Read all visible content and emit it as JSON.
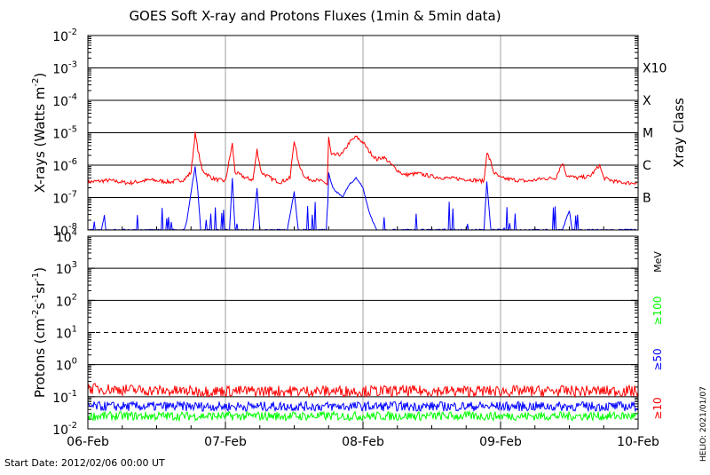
{
  "title": "GOES Soft X-ray and Protons Fluxes   (1min & 5min data)",
  "start_date": "Start Date: 2012/02/06 00:00 UT",
  "credit": "HELIO: 2021/01/07",
  "colors": {
    "xray_long": "#ff0000",
    "xray_short": "#0000ff",
    "proton_10": "#ff0000",
    "proton_50": "#0000ff",
    "proton_100": "#00ff00",
    "grid": "#000000",
    "day_lines": "#a0a0a0"
  },
  "chart_data": [
    {
      "type": "line",
      "title": "",
      "ylabel": "X-rays (Watts m^-2)",
      "yscale": "log",
      "ylim": [
        1e-08,
        0.01
      ],
      "xlim": [
        "2012-02-06 00:00",
        "2012-02-10 00:00"
      ],
      "x_tick_labels": [
        "06-Feb",
        "07-Feb",
        "08-Feb",
        "09-Feb",
        "10-Feb"
      ],
      "y_tick_labels": [
        {
          "base": "10",
          "exp": "-8"
        },
        {
          "base": "10",
          "exp": "-7"
        },
        {
          "base": "10",
          "exp": "-6"
        },
        {
          "base": "10",
          "exp": "-5"
        },
        {
          "base": "10",
          "exp": "-4"
        },
        {
          "base": "10",
          "exp": "-3"
        },
        {
          "base": "10",
          "exp": "-2"
        }
      ],
      "right_axis_title": "Xray Class",
      "right_labels": [
        {
          "label": "B",
          "value": 1e-07
        },
        {
          "label": "C",
          "value": 1e-06
        },
        {
          "label": "M",
          "value": 1e-05
        },
        {
          "label": "X",
          "value": 0.0001
        },
        {
          "label": "X10",
          "value": 0.001
        }
      ],
      "series": [
        {
          "key": "long",
          "points": [
            [
              0.0,
              3e-07
            ],
            [
              0.15,
              3.4e-07
            ],
            [
              0.3,
              2.8e-07
            ],
            [
              0.45,
              3.5e-07
            ],
            [
              0.6,
              3e-07
            ],
            [
              0.7,
              3.6e-07
            ],
            [
              0.75,
              6e-07
            ],
            [
              0.78,
              9.5e-06
            ],
            [
              0.8,
              3e-06
            ],
            [
              0.83,
              7e-07
            ],
            [
              0.9,
              4e-07
            ],
            [
              0.95,
              3.5e-07
            ],
            [
              1.0,
              3.2e-07
            ],
            [
              1.05,
              4.5e-06
            ],
            [
              1.07,
              6e-07
            ],
            [
              1.15,
              4e-07
            ],
            [
              1.2,
              3.5e-07
            ],
            [
              1.23,
              3e-06
            ],
            [
              1.26,
              6e-07
            ],
            [
              1.35,
              3.5e-07
            ],
            [
              1.4,
              3e-07
            ],
            [
              1.47,
              4e-07
            ],
            [
              1.5,
              6e-06
            ],
            [
              1.53,
              1.2e-06
            ],
            [
              1.58,
              4e-07
            ],
            [
              1.65,
              3.5e-07
            ],
            [
              1.72,
              3e-07
            ],
            [
              1.74,
              2.5e-07
            ],
            [
              1.75,
              7e-06
            ],
            [
              1.77,
              2e-06
            ],
            [
              1.85,
              2.2e-06
            ],
            [
              1.9,
              5e-06
            ],
            [
              1.95,
              7.5e-06
            ],
            [
              2.0,
              5e-06
            ],
            [
              2.05,
              2.5e-06
            ],
            [
              2.1,
              1.5e-06
            ],
            [
              2.15,
              1.8e-06
            ],
            [
              2.2,
              1.1e-06
            ],
            [
              2.25,
              7e-07
            ],
            [
              2.3,
              5e-07
            ],
            [
              2.4,
              5.5e-07
            ],
            [
              2.5,
              4.5e-07
            ],
            [
              2.6,
              4e-07
            ],
            [
              2.7,
              3.8e-07
            ],
            [
              2.8,
              3.5e-07
            ],
            [
              2.88,
              3.2e-07
            ],
            [
              2.9,
              2.5e-06
            ],
            [
              2.93,
              1.2e-06
            ],
            [
              2.95,
              6e-07
            ],
            [
              3.0,
              4e-07
            ],
            [
              3.1,
              3.5e-07
            ],
            [
              3.2,
              3.2e-07
            ],
            [
              3.3,
              3.8e-07
            ],
            [
              3.4,
              4e-07
            ],
            [
              3.45,
              1.2e-06
            ],
            [
              3.48,
              5e-07
            ],
            [
              3.55,
              4e-07
            ],
            [
              3.65,
              4.5e-07
            ],
            [
              3.72,
              1e-06
            ],
            [
              3.75,
              4e-07
            ],
            [
              3.85,
              3e-07
            ],
            [
              3.95,
              2.8e-07
            ],
            [
              4.0,
              3e-07
            ]
          ]
        },
        {
          "key": "short",
          "points": [
            [
              0.0,
              1e-08
            ],
            [
              0.1,
              1e-08
            ],
            [
              0.12,
              3e-08
            ],
            [
              0.13,
              1e-08
            ],
            [
              0.3,
              1e-08
            ],
            [
              0.7,
              1e-08
            ],
            [
              0.72,
              2e-08
            ],
            [
              0.75,
              1.5e-07
            ],
            [
              0.78,
              9e-07
            ],
            [
              0.8,
              1.5e-07
            ],
            [
              0.82,
              1e-08
            ],
            [
              1.0,
              1e-08
            ],
            [
              1.03,
              1e-08
            ],
            [
              1.05,
              4e-07
            ],
            [
              1.07,
              1e-08
            ],
            [
              1.2,
              1e-08
            ],
            [
              1.23,
              2e-07
            ],
            [
              1.25,
              1e-08
            ],
            [
              1.45,
              1e-08
            ],
            [
              1.5,
              1.5e-07
            ],
            [
              1.53,
              1e-08
            ],
            [
              1.74,
              1e-08
            ],
            [
              1.75,
              6e-07
            ],
            [
              1.78,
              2e-07
            ],
            [
              1.85,
              1e-07
            ],
            [
              1.9,
              2.5e-07
            ],
            [
              1.95,
              4e-07
            ],
            [
              2.0,
              2e-07
            ],
            [
              2.05,
              3e-08
            ],
            [
              2.1,
              1e-08
            ],
            [
              2.2,
              1e-08
            ],
            [
              2.88,
              1e-08
            ],
            [
              2.9,
              3e-07
            ],
            [
              2.93,
              1e-08
            ],
            [
              3.0,
              1e-08
            ],
            [
              3.45,
              1e-08
            ],
            [
              3.5,
              4e-08
            ],
            [
              3.52,
              1e-08
            ],
            [
              3.95,
              1e-08
            ],
            [
              4.0,
              1e-08
            ]
          ]
        }
      ]
    },
    {
      "type": "line",
      "title": "",
      "ylabel": "Protons (cm^-2 s^-1 sr^-1)",
      "yscale": "log",
      "ylim": [
        0.01,
        10000
      ],
      "xlim": [
        "2012-02-06 00:00",
        "2012-02-10 00:00"
      ],
      "y_tick_labels": [
        {
          "base": "10",
          "exp": "-2"
        },
        {
          "base": "10",
          "exp": "-1"
        },
        {
          "base": "10",
          "exp": "0"
        },
        {
          "base": "10",
          "exp": "1"
        },
        {
          "base": "10",
          "exp": "2"
        },
        {
          "base": "10",
          "exp": "3"
        },
        {
          "base": "10",
          "exp": "4"
        }
      ],
      "unit_label": "MeV",
      "threshold_line": 10,
      "series": [
        {
          "name": "≥10",
          "key": "p10",
          "level": 0.15
        },
        {
          "name": "≥50",
          "key": "p50",
          "level": 0.05
        },
        {
          "name": "≥100",
          "key": "p100",
          "level": 0.025
        }
      ]
    }
  ]
}
